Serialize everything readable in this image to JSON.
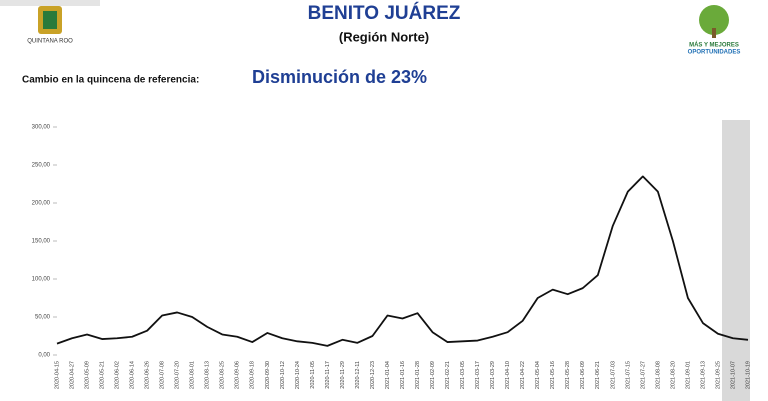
{
  "header": {
    "title": "BENITO JUÁREZ",
    "subtitle": "(Región Norte)",
    "left_logo": "QUINTANA ROO",
    "right_logo": [
      "MÁS Y MEJORES",
      "OPORTUNIDADES"
    ]
  },
  "summary": {
    "label": "Cambio en la quincena de referencia:",
    "value": "Disminución de 23%"
  },
  "chart_data": {
    "type": "line",
    "categories": [
      "2020-04-15",
      "2020-04-27",
      "2020-05-09",
      "2020-05-21",
      "2020-06-02",
      "2020-06-14",
      "2020-06-26",
      "2020-07-08",
      "2020-07-20",
      "2020-08-01",
      "2020-08-13",
      "2020-08-25",
      "2020-09-06",
      "2020-09-18",
      "2020-09-30",
      "2020-10-12",
      "2020-10-24",
      "2020-11-05",
      "2020-11-17",
      "2020-11-29",
      "2020-12-11",
      "2020-12-23",
      "2021-01-04",
      "2021-01-16",
      "2021-01-28",
      "2021-02-09",
      "2021-02-21",
      "2021-03-05",
      "2021-03-17",
      "2021-03-29",
      "2021-04-10",
      "2021-04-22",
      "2021-05-04",
      "2021-05-16",
      "2021-05-28",
      "2021-06-09",
      "2021-06-21",
      "2021-07-03",
      "2021-07-15",
      "2021-07-27",
      "2021-08-08",
      "2021-08-20",
      "2021-09-01",
      "2021-09-13",
      "2021-09-25",
      "2021-10-07",
      "2021-10-19"
    ],
    "series": [
      {
        "color": "#111111",
        "values": [
          15,
          22,
          27,
          21,
          22,
          24,
          32,
          52,
          56,
          50,
          37,
          27,
          24,
          17,
          29,
          22,
          18,
          16,
          12,
          20,
          16,
          25,
          52,
          48,
          55,
          30,
          17,
          18,
          19,
          24,
          30,
          45,
          75,
          86,
          80,
          88,
          105,
          170,
          215,
          235,
          215,
          150,
          75,
          42,
          28,
          22,
          20
        ]
      }
    ],
    "ylim": [
      0,
      300
    ],
    "yticks": [
      {
        "value": 0,
        "label": "0,00"
      },
      {
        "value": 50,
        "label": "50,00"
      },
      {
        "value": 100,
        "label": "100,00"
      },
      {
        "value": 150,
        "label": "150,00"
      },
      {
        "value": 200,
        "label": "200,00"
      },
      {
        "value": 250,
        "label": "250,00"
      },
      {
        "value": 300,
        "label": "300,00"
      }
    ]
  }
}
